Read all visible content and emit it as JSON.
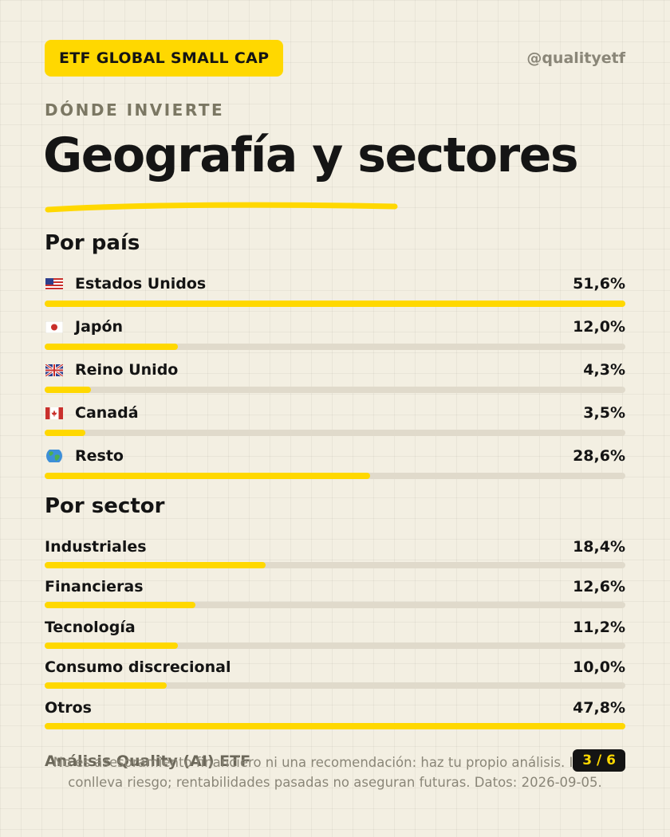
{
  "header": {
    "badge": "ETF GLOBAL SMALL CAP",
    "handle": "@qualityetf",
    "kicker": "DÓNDE INVIERTE",
    "title": "Geografía y sectores"
  },
  "countries": {
    "title": "Por país",
    "items": [
      {
        "flag": "us-flag-icon",
        "label": "Estados Unidos",
        "value": "51,6%",
        "pct": 100
      },
      {
        "flag": "jp-flag-icon",
        "label": "Japón",
        "value": "12,0%",
        "pct": 23
      },
      {
        "flag": "uk-flag-icon",
        "label": "Reino Unido",
        "value": "4,3%",
        "pct": 8
      },
      {
        "flag": "ca-flag-icon",
        "label": "Canadá",
        "value": "3,5%",
        "pct": 7
      },
      {
        "flag": "globe-icon",
        "label": "Resto",
        "value": "28,6%",
        "pct": 56
      }
    ]
  },
  "sectors": {
    "title": "Por sector",
    "items": [
      {
        "label": "Industriales",
        "value": "18,4%",
        "pct": 38
      },
      {
        "label": "Financieras",
        "value": "12,6%",
        "pct": 26
      },
      {
        "label": "Tecnología",
        "value": "11,2%",
        "pct": 23
      },
      {
        "label": "Consumo discrecional",
        "value": "10,0%",
        "pct": 21
      },
      {
        "label": "Otros",
        "value": "47,8%",
        "pct": 100
      }
    ]
  },
  "footer": {
    "brand": "Análisis Quality (AI) ETF",
    "disclaimer": "No es asesoramiento financiero ni una recomendación: haz tu propio análisis. Invertir conlleva riesgo; rentabilidades pasadas no aseguran futuras. Datos: 2026-09-05.",
    "page": "3 / 6"
  },
  "colors": {
    "accent": "#ffd800",
    "track": "#e0dacb",
    "text": "#141414"
  }
}
